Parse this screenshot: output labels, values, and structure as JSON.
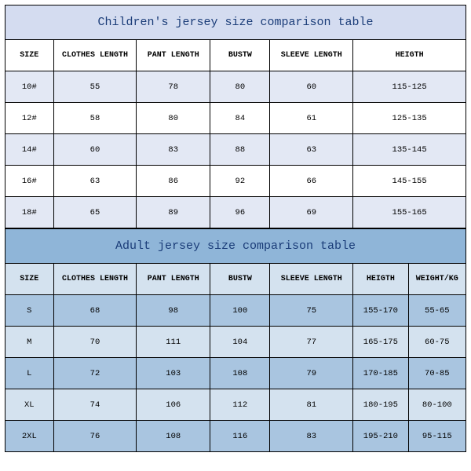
{
  "children_table": {
    "type": "table",
    "title": "Children's jersey size comparison table",
    "title_bg": "#d4dcf0",
    "title_color": "#1a3c78",
    "title_fontsize": 15,
    "header_bg": "#ffffff",
    "row_odd_bg": "#e3e8f4",
    "row_even_bg": "#ffffff",
    "border_color": "#000000",
    "cell_fontsize": 10.5,
    "columns": [
      "SIZE",
      "CLOTHES LENGTH",
      "PANT LENGTH",
      "BUSTW",
      "SLEEVE LENGTH",
      "HEIGTH"
    ],
    "column_widths_pct": [
      10.5,
      18,
      16,
      13,
      18,
      24.5
    ],
    "rows": [
      [
        "10#",
        "55",
        "78",
        "80",
        "60",
        "115-125"
      ],
      [
        "12#",
        "58",
        "80",
        "84",
        "61",
        "125-135"
      ],
      [
        "14#",
        "60",
        "83",
        "88",
        "63",
        "135-145"
      ],
      [
        "16#",
        "63",
        "86",
        "92",
        "66",
        "145-155"
      ],
      [
        "18#",
        "65",
        "89",
        "96",
        "69",
        "155-165"
      ]
    ]
  },
  "adult_table": {
    "type": "table",
    "title": "Adult jersey size comparison table",
    "title_bg": "#8fb5d8",
    "title_color": "#1a3c78",
    "title_fontsize": 15,
    "header_bg": "#d4e2ef",
    "row_odd_bg": "#a9c5e0",
    "row_even_bg": "#d4e2ef",
    "border_color": "#000000",
    "cell_fontsize": 10.5,
    "columns": [
      "SIZE",
      "CLOTHES LENGTH",
      "PANT LENGTH",
      "BUSTW",
      "SLEEVE LENGTH",
      "HEIGTH",
      "WEIGHT/KG"
    ],
    "column_widths_pct": [
      10.5,
      18,
      16,
      13,
      18,
      12,
      12.5
    ],
    "rows": [
      [
        "S",
        "68",
        "98",
        "100",
        "75",
        "155-170",
        "55-65"
      ],
      [
        "M",
        "70",
        "111",
        "104",
        "77",
        "165-175",
        "60-75"
      ],
      [
        "L",
        "72",
        "103",
        "108",
        "79",
        "170-185",
        "70-85"
      ],
      [
        "XL",
        "74",
        "106",
        "112",
        "81",
        "180-195",
        "80-100"
      ],
      [
        "2XL",
        "76",
        "108",
        "116",
        "83",
        "195-210",
        "95-115"
      ]
    ]
  }
}
